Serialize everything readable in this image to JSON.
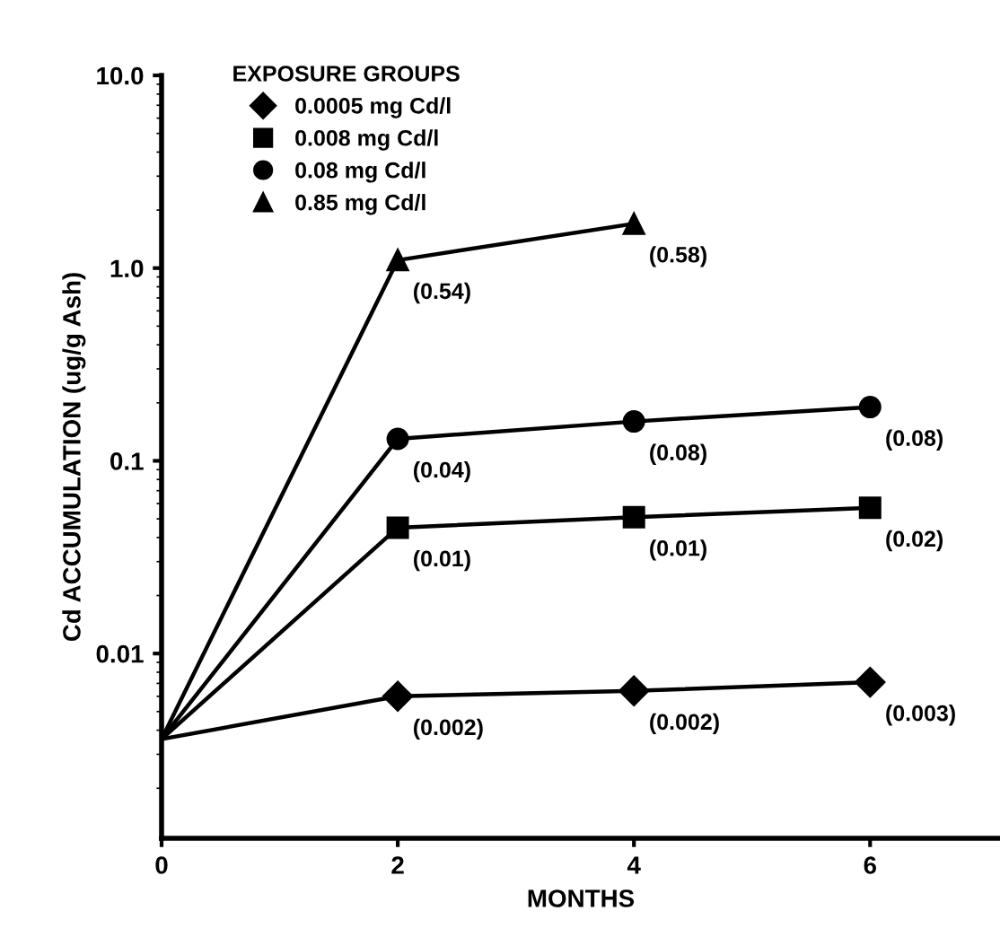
{
  "chart_data": {
    "type": "line",
    "xlabel": "MONTHS",
    "ylabel": "Cd ACCUMULATION (ug/g Ash)",
    "legend_title": "EXPOSURE GROUPS",
    "legend": "top left",
    "log": "y",
    "grid": false,
    "xlim": [
      0,
      7.1
    ],
    "xticks": [
      0,
      2,
      4,
      6
    ],
    "ylim": [
      0.0011,
      10
    ],
    "yticks": [
      {
        "value": 0.01,
        "label": "0.01"
      },
      {
        "value": 0.1,
        "label": "0.1"
      },
      {
        "value": 1,
        "label": "1.0"
      },
      {
        "value": 10,
        "label": "10.0"
      }
    ],
    "series": [
      {
        "name": "0.0005 mg Cd/l",
        "color": "#000000",
        "marker": "diamond",
        "x": [
          0,
          2,
          4,
          6
        ],
        "values": [
          0.0036,
          0.006,
          0.0064,
          0.0071
        ]
      },
      {
        "name": "0.008 mg Cd/l",
        "color": "#000000",
        "marker": "square",
        "x": [
          0,
          2,
          4,
          6
        ],
        "values": [
          0.0036,
          0.045,
          0.051,
          0.057
        ]
      },
      {
        "name": "0.08 mg Cd/l",
        "color": "#000000",
        "marker": "circle",
        "x": [
          0,
          2,
          4,
          6
        ],
        "values": [
          0.0036,
          0.13,
          0.16,
          0.19
        ]
      },
      {
        "name": "0.85 mg Cd/l",
        "color": "#000000",
        "marker": "triangle",
        "x": [
          0,
          2,
          4
        ],
        "values": [
          0.0036,
          1.1,
          1.7
        ]
      }
    ],
    "annotations": [
      {
        "text": "(0.002)",
        "x": 2,
        "y": 0.006
      },
      {
        "text": "(0.002)",
        "x": 4,
        "y": 0.0064
      },
      {
        "text": "(0.003)",
        "x": 6,
        "y": 0.0071
      },
      {
        "text": "(0.01)",
        "x": 2,
        "y": 0.045
      },
      {
        "text": "(0.01)",
        "x": 4,
        "y": 0.051
      },
      {
        "text": "(0.02)",
        "x": 6,
        "y": 0.057
      },
      {
        "text": "(0.04)",
        "x": 2,
        "y": 0.13
      },
      {
        "text": "(0.08)",
        "x": 4,
        "y": 0.16
      },
      {
        "text": "(0.08)",
        "x": 6,
        "y": 0.19
      },
      {
        "text": "(0.54)",
        "x": 2,
        "y": 1.1
      },
      {
        "text": "(0.58)",
        "x": 4,
        "y": 1.7
      }
    ]
  }
}
